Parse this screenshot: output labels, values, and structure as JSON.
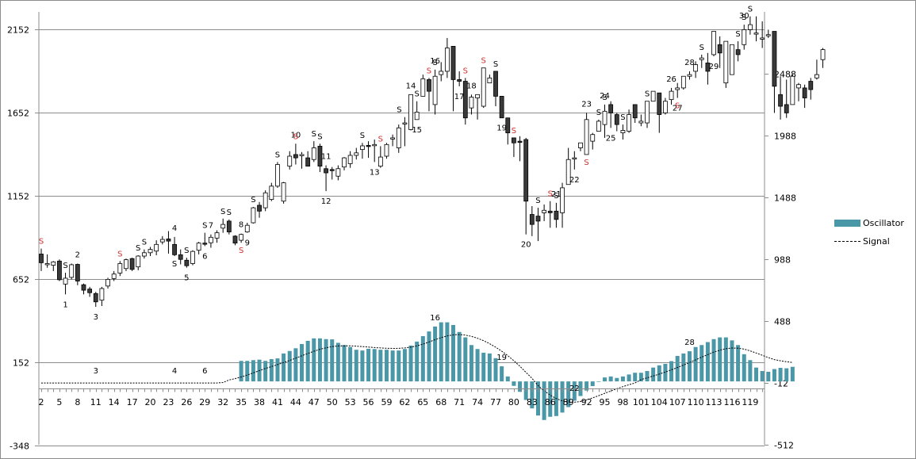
{
  "chart_data": {
    "type": "candlestick+bar+line",
    "title": "",
    "left_axis": {
      "ticks": [
        2152,
        1652,
        1152,
        652,
        152,
        -348
      ],
      "min": -348,
      "max": 2152
    },
    "right_axis": {
      "ticks": [
        2488,
        1988,
        1488,
        988,
        488,
        -12,
        -512
      ],
      "min": -512,
      "max": 2488
    },
    "x_tick_labels": [
      "2",
      "5",
      "8",
      "11",
      "14",
      "17",
      "20",
      "23",
      "26",
      "29",
      "32",
      "35",
      "38",
      "41",
      "44",
      "47",
      "50",
      "53",
      "56",
      "59",
      "62",
      "65",
      "68",
      "71",
      "74",
      "77",
      "80",
      "83",
      "86",
      "89",
      "92",
      "95",
      "98",
      "101",
      "104",
      "107",
      "110",
      "113",
      "116",
      "119"
    ],
    "grid": true,
    "legend_position": "right",
    "legend": [
      {
        "name": "Oscillator",
        "type": "bar",
        "color": "#4a97a8"
      },
      {
        "name": "Signal",
        "type": "dashed-line",
        "color": "#000000"
      }
    ],
    "candles": [
      [
        802,
        750,
        835,
        700
      ],
      [
        745,
        745,
        800,
        720
      ],
      [
        735,
        755,
        760,
        700
      ],
      [
        760,
        648,
        770,
        640
      ],
      [
        622,
        657,
        690,
        560
      ],
      [
        662,
        738,
        745,
        650
      ],
      [
        740,
        640,
        745,
        615
      ],
      [
        618,
        585,
        625,
        560
      ],
      [
        592,
        570,
        605,
        545
      ],
      [
        565,
        515,
        575,
        485
      ],
      [
        525,
        595,
        605,
        490
      ],
      [
        610,
        650,
        660,
        595
      ],
      [
        655,
        682,
        700,
        640
      ],
      [
        688,
        745,
        760,
        670
      ],
      [
        715,
        768,
        775,
        700
      ],
      [
        775,
        710,
        780,
        700
      ],
      [
        725,
        790,
        795,
        705
      ],
      [
        790,
        810,
        830,
        775
      ],
      [
        810,
        830,
        845,
        790
      ],
      [
        820,
        860,
        885,
        795
      ],
      [
        875,
        890,
        910,
        860
      ],
      [
        893,
        880,
        940,
        805
      ],
      [
        860,
        798,
        905,
        790
      ],
      [
        798,
        770,
        830,
        740
      ],
      [
        765,
        732,
        780,
        720
      ],
      [
        745,
        818,
        825,
        735
      ],
      [
        825,
        868,
        875,
        800
      ],
      [
        868,
        865,
        930,
        850
      ],
      [
        870,
        903,
        920,
        840
      ],
      [
        898,
        930,
        945,
        870
      ],
      [
        958,
        980,
        1015,
        930
      ],
      [
        1000,
        935,
        1010,
        920
      ],
      [
        910,
        868,
        915,
        855
      ],
      [
        885,
        920,
        925,
        870
      ],
      [
        935,
        975,
        990,
        930
      ],
      [
        990,
        1080,
        1085,
        985
      ],
      [
        1095,
        1060,
        1115,
        1020
      ],
      [
        1080,
        1170,
        1185,
        1060
      ],
      [
        1130,
        1210,
        1230,
        1120
      ],
      [
        1210,
        1340,
        1355,
        1200
      ],
      [
        1120,
        1230,
        1235,
        1105
      ],
      [
        1330,
        1390,
        1420,
        1310
      ],
      [
        1400,
        1380,
        1465,
        1340
      ],
      [
        1395,
        1400,
        1415,
        1315
      ],
      [
        1380,
        1330,
        1420,
        1340
      ],
      [
        1370,
        1440,
        1480,
        1355
      ],
      [
        1450,
        1330,
        1465,
        1295
      ],
      [
        1315,
        1290,
        1335,
        1180
      ],
      [
        1310,
        1305,
        1325,
        1250
      ],
      [
        1270,
        1315,
        1335,
        1245
      ],
      [
        1325,
        1380,
        1385,
        1305
      ],
      [
        1345,
        1395,
        1420,
        1320
      ],
      [
        1395,
        1410,
        1440,
        1370
      ],
      [
        1430,
        1452,
        1470,
        1375
      ],
      [
        1455,
        1452,
        1480,
        1380
      ],
      [
        1460,
        1460,
        1490,
        1355
      ],
      [
        1330,
        1385,
        1450,
        1320
      ],
      [
        1390,
        1460,
        1470,
        1375
      ],
      [
        1500,
        1500,
        1520,
        1450
      ],
      [
        1440,
        1560,
        1580,
        1410
      ],
      [
        1590,
        1590,
        1625,
        1450
      ],
      [
        1550,
        1760,
        1760,
        1545
      ],
      [
        1610,
        1655,
        1720,
        1640
      ],
      [
        1750,
        1855,
        1880,
        1790
      ],
      [
        1850,
        1780,
        1860,
        1660
      ],
      [
        1700,
        1870,
        1910,
        1640
      ],
      [
        1880,
        1900,
        1955,
        1840
      ],
      [
        1900,
        2040,
        2100,
        1860
      ],
      [
        2050,
        1850,
        2050,
        1660
      ],
      [
        1850,
        1840,
        1900,
        1810
      ],
      [
        1840,
        1620,
        1860,
        1580
      ],
      [
        1680,
        1745,
        1760,
        1640
      ],
      [
        1740,
        1760,
        1760,
        1610
      ],
      [
        1690,
        1920,
        1920,
        1680
      ],
      [
        1830,
        1860,
        1880,
        1840
      ],
      [
        1900,
        1750,
        1900,
        1690
      ],
      [
        1750,
        1620,
        1750,
        1670
      ],
      [
        1620,
        1530,
        1620,
        1460
      ],
      [
        1500,
        1470,
        1480,
        1385
      ],
      [
        1480,
        1475,
        1510,
        1360
      ],
      [
        1490,
        1120,
        1500,
        920
      ],
      [
        1040,
        980,
        1090,
        910
      ],
      [
        1030,
        1000,
        1080,
        880
      ],
      [
        1050,
        1065,
        1100,
        1000
      ],
      [
        1060,
        1050,
        1120,
        960
      ],
      [
        1060,
        1010,
        1110,
        960
      ],
      [
        1050,
        1200,
        1230,
        960
      ],
      [
        1220,
        1370,
        1440,
        1230
      ],
      [
        1380,
        1380,
        1420,
        1310
      ],
      [
        1440,
        1470,
        1470,
        1420
      ],
      [
        1400,
        1610,
        1650,
        1400
      ],
      [
        1480,
        1520,
        1530,
        1430
      ],
      [
        1540,
        1600,
        1610,
        1560
      ],
      [
        1580,
        1660,
        1700,
        1500
      ],
      [
        1700,
        1650,
        1720,
        1560
      ],
      [
        1640,
        1580,
        1650,
        1540
      ],
      [
        1530,
        1545,
        1580,
        1490
      ],
      [
        1540,
        1640,
        1670,
        1530
      ],
      [
        1700,
        1620,
        1700,
        1590
      ],
      [
        1590,
        1600,
        1640,
        1570
      ],
      [
        1590,
        1720,
        1720,
        1560
      ],
      [
        1720,
        1780,
        1780,
        1770
      ],
      [
        1770,
        1640,
        1770,
        1530
      ],
      [
        1650,
        1720,
        1740,
        1640
      ],
      [
        1730,
        1780,
        1800,
        1700
      ],
      [
        1790,
        1800,
        1830,
        1740
      ],
      [
        1800,
        1870,
        1870,
        1790
      ],
      [
        1870,
        1880,
        1900,
        1850
      ],
      [
        1900,
        1940,
        1960,
        1860
      ],
      [
        1970,
        1980,
        2000,
        1920
      ],
      [
        1950,
        1900,
        2010,
        1820
      ],
      [
        2000,
        2140,
        2140,
        1990
      ],
      [
        2060,
        2010,
        2110,
        1920
      ],
      [
        1830,
        2080,
        2080,
        1800
      ],
      [
        1880,
        2060,
        2060,
        1890
      ],
      [
        2030,
        2000,
        2080,
        1960
      ],
      [
        2060,
        2150,
        2180,
        2030
      ],
      [
        2150,
        2180,
        2230,
        2120
      ],
      [
        2130,
        2130,
        2230,
        2080
      ],
      [
        2100,
        2100,
        2200,
        2040
      ],
      [
        2120,
        2120,
        2150,
        2100
      ],
      [
        2140,
        1810,
        2140,
        1650
      ],
      [
        1760,
        1690,
        1870,
        1610
      ],
      [
        1700,
        1650,
        1850,
        1620
      ],
      [
        1700,
        1870,
        1880,
        1720
      ],
      [
        1800,
        1820,
        1830,
        1720
      ],
      [
        1800,
        1740,
        1820,
        1680
      ],
      [
        1840,
        1790,
        1860,
        1730
      ],
      [
        1860,
        1880,
        1970,
        1850
      ],
      [
        1970,
        2030,
        2040,
        1920
      ]
    ],
    "oscillator": [
      0,
      0,
      0,
      0,
      0,
      0,
      0,
      0,
      0,
      0,
      0,
      0,
      0,
      0,
      0,
      0,
      0,
      0,
      0,
      0,
      0,
      0,
      0,
      0,
      0,
      0,
      0,
      0,
      0,
      0,
      0,
      0,
      0,
      166,
      166,
      172,
      176,
      166,
      180,
      186,
      226,
      246,
      268,
      302,
      328,
      348,
      348,
      342,
      340,
      312,
      294,
      278,
      256,
      250,
      264,
      262,
      256,
      256,
      250,
      250,
      262,
      290,
      322,
      366,
      404,
      444,
      478,
      478,
      456,
      400,
      356,
      294,
      262,
      232,
      226,
      188,
      122,
      40,
      -36,
      -84,
      -150,
      -218,
      -276,
      -312,
      -286,
      -280,
      -252,
      -208,
      -156,
      -118,
      -74,
      -38,
      -4,
      32,
      40,
      28,
      40,
      56,
      70,
      70,
      84,
      112,
      130,
      142,
      164,
      206,
      226,
      244,
      278,
      294,
      318,
      342,
      356,
      356,
      332,
      294,
      220,
      172,
      112,
      84,
      78,
      100,
      110,
      106,
      118
    ],
    "signal_line": "dashed smoothed average of oscillator",
    "candle_annotations": [
      {
        "label": "1",
        "x_index": 6,
        "pos": "below"
      },
      {
        "label": "2",
        "x_index": 8,
        "pos": "above"
      },
      {
        "label": "3",
        "x_index": 11,
        "pos": "below"
      },
      {
        "label": "4",
        "x_index": 24,
        "pos": "above"
      },
      {
        "label": "5",
        "x_index": 26,
        "pos": "below"
      },
      {
        "label": "6",
        "x_index": 29,
        "pos": "below"
      },
      {
        "label": "7",
        "x_index": 30,
        "pos": "above"
      },
      {
        "label": "8",
        "x_index": 35,
        "pos": "above"
      },
      {
        "label": "9",
        "x_index": 36,
        "pos": "below"
      },
      {
        "label": "10",
        "x_index": 44,
        "pos": "above"
      },
      {
        "label": "11",
        "x_index": 49,
        "pos": "above"
      },
      {
        "label": "12",
        "x_index": 49,
        "pos": "below"
      },
      {
        "label": "13",
        "x_index": 57,
        "pos": "below"
      },
      {
        "label": "14",
        "x_index": 63,
        "pos": "above"
      },
      {
        "label": "15",
        "x_index": 64,
        "pos": "below"
      },
      {
        "label": "16",
        "x_index": 67,
        "pos": "above"
      },
      {
        "label": "17",
        "x_index": 71,
        "pos": "below"
      },
      {
        "label": "18",
        "x_index": 73,
        "pos": "above"
      },
      {
        "label": "19",
        "x_index": 78,
        "pos": "below"
      },
      {
        "label": "20",
        "x_index": 82,
        "pos": "below"
      },
      {
        "label": "21",
        "x_index": 87,
        "pos": "above"
      },
      {
        "label": "22",
        "x_index": 90,
        "pos": "below"
      },
      {
        "label": "23",
        "x_index": 92,
        "pos": "above"
      },
      {
        "label": "24",
        "x_index": 95,
        "pos": "above"
      },
      {
        "label": "25",
        "x_index": 96,
        "pos": "below"
      },
      {
        "label": "26",
        "x_index": 106,
        "pos": "above"
      },
      {
        "label": "27",
        "x_index": 107,
        "pos": "below"
      },
      {
        "label": "28",
        "x_index": 109,
        "pos": "above"
      },
      {
        "label": "29",
        "x_index": 113,
        "pos": "below"
      },
      {
        "label": "30",
        "x_index": 118,
        "pos": "above"
      }
    ],
    "oscillator_annotations": [
      {
        "label": "3",
        "x_index": 11
      },
      {
        "label": "4",
        "x_index": 24
      },
      {
        "label": "6",
        "x_index": 29
      },
      {
        "label": "16",
        "x_index": 67
      },
      {
        "label": "19",
        "x_index": 78
      },
      {
        "label": "22",
        "x_index": 90
      },
      {
        "label": "28",
        "x_index": 109
      }
    ]
  },
  "legend": {
    "oscillator_label": "Oscillator",
    "signal_label": "Signal"
  }
}
